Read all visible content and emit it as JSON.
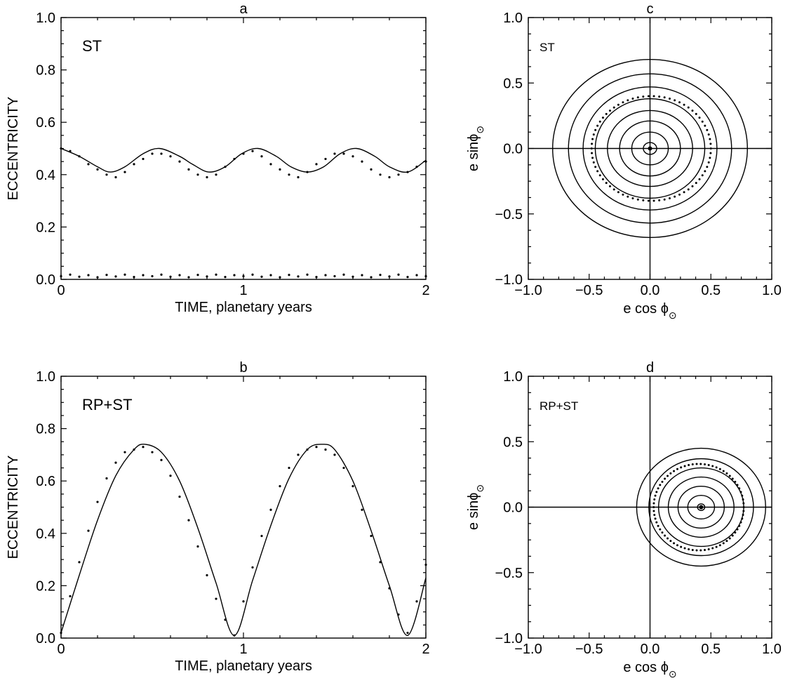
{
  "chart_data": [
    {
      "id": "a",
      "type": "line",
      "title": "a",
      "label": "ST",
      "xlabel": "TIME,  planetary years",
      "ylabel": "ECCENTRICITY",
      "xlim": [
        0,
        2
      ],
      "ylim": [
        0,
        1
      ],
      "xticks": [
        0,
        1,
        2
      ],
      "yticks": [
        0.0,
        0.2,
        0.4,
        0.6,
        0.8,
        1.0
      ],
      "x_tick_labels": [
        "0",
        "1",
        "2"
      ],
      "y_tick_labels": [
        "0.0",
        "0.2",
        "0.4",
        "0.6",
        "0.8",
        "1.0"
      ],
      "series": [
        {
          "style": "solid",
          "x": [
            0,
            0.1,
            0.2,
            0.27,
            0.35,
            0.45,
            0.54,
            0.65,
            0.72,
            0.81,
            0.9,
            0.99,
            1.08,
            1.18,
            1.26,
            1.35,
            1.44,
            1.53,
            1.62,
            1.72,
            1.8,
            1.9,
            2.0
          ],
          "y": [
            0.5,
            0.47,
            0.43,
            0.41,
            0.43,
            0.48,
            0.5,
            0.47,
            0.44,
            0.41,
            0.43,
            0.48,
            0.5,
            0.47,
            0.43,
            0.41,
            0.43,
            0.48,
            0.5,
            0.47,
            0.43,
            0.41,
            0.455
          ]
        },
        {
          "style": "dotted",
          "x": [
            0,
            0.05,
            0.1,
            0.15,
            0.2,
            0.25,
            0.3,
            0.35,
            0.4,
            0.45,
            0.5,
            0.55,
            0.6,
            0.65,
            0.7,
            0.75,
            0.8,
            0.85,
            0.9,
            0.95,
            1.0,
            1.05,
            1.1,
            1.15,
            1.2,
            1.25,
            1.3,
            1.35,
            1.4,
            1.45,
            1.5,
            1.55,
            1.6,
            1.65,
            1.7,
            1.75,
            1.8,
            1.85,
            1.9,
            1.95,
            2.0
          ],
          "y": [
            0.5,
            0.49,
            0.47,
            0.44,
            0.42,
            0.4,
            0.39,
            0.41,
            0.44,
            0.46,
            0.48,
            0.48,
            0.47,
            0.45,
            0.42,
            0.4,
            0.39,
            0.4,
            0.43,
            0.46,
            0.48,
            0.49,
            0.47,
            0.44,
            0.42,
            0.4,
            0.39,
            0.41,
            0.44,
            0.46,
            0.48,
            0.48,
            0.47,
            0.45,
            0.42,
            0.4,
            0.39,
            0.4,
            0.41,
            0.43,
            0.45
          ]
        },
        {
          "style": "dotted",
          "x": [
            0,
            0.05,
            0.1,
            0.15,
            0.2,
            0.25,
            0.3,
            0.35,
            0.4,
            0.45,
            0.5,
            0.55,
            0.6,
            0.65,
            0.7,
            0.75,
            0.8,
            0.85,
            0.9,
            0.95,
            1.0,
            1.05,
            1.1,
            1.15,
            1.2,
            1.25,
            1.3,
            1.35,
            1.4,
            1.45,
            1.5,
            1.55,
            1.6,
            1.65,
            1.7,
            1.75,
            1.8,
            1.85,
            1.9,
            1.95,
            2.0
          ],
          "y": [
            0.012,
            0.018,
            0.01,
            0.016,
            0.008,
            0.017,
            0.011,
            0.018,
            0.009,
            0.016,
            0.012,
            0.018,
            0.01,
            0.016,
            0.008,
            0.017,
            0.011,
            0.018,
            0.009,
            0.016,
            0.012,
            0.018,
            0.01,
            0.016,
            0.008,
            0.017,
            0.011,
            0.018,
            0.009,
            0.016,
            0.012,
            0.018,
            0.01,
            0.016,
            0.008,
            0.017,
            0.011,
            0.018,
            0.009,
            0.016,
            0.012
          ]
        }
      ]
    },
    {
      "id": "b",
      "type": "line",
      "title": "b",
      "label": "RP+ST",
      "xlabel": "TIME,  planetary years",
      "ylabel": "ECCENTRICITY",
      "xlim": [
        0,
        2
      ],
      "ylim": [
        0,
        1
      ],
      "xticks": [
        0,
        1,
        2
      ],
      "yticks": [
        0.0,
        0.2,
        0.4,
        0.6,
        0.8,
        1.0
      ],
      "x_tick_labels": [
        "0",
        "1",
        "2"
      ],
      "y_tick_labels": [
        "0.0",
        "0.2",
        "0.4",
        "0.6",
        "0.8",
        "1.0"
      ],
      "series": [
        {
          "style": "solid",
          "x": [
            0,
            0.1,
            0.2,
            0.3,
            0.4,
            0.46,
            0.55,
            0.65,
            0.75,
            0.85,
            0.95,
            1.05,
            1.15,
            1.25,
            1.35,
            1.43,
            1.5,
            1.6,
            1.7,
            1.8,
            1.9,
            2.0
          ],
          "y": [
            0.02,
            0.24,
            0.45,
            0.62,
            0.72,
            0.74,
            0.71,
            0.6,
            0.42,
            0.21,
            0.01,
            0.22,
            0.43,
            0.61,
            0.72,
            0.74,
            0.72,
            0.6,
            0.41,
            0.2,
            0.01,
            0.23
          ]
        },
        {
          "style": "dotted",
          "x": [
            0,
            0.05,
            0.1,
            0.15,
            0.2,
            0.25,
            0.3,
            0.35,
            0.4,
            0.45,
            0.5,
            0.55,
            0.6,
            0.65,
            0.7,
            0.75,
            0.8,
            0.85,
            0.9,
            0.95,
            1.0,
            1.05,
            1.1,
            1.15,
            1.2,
            1.25,
            1.3,
            1.35,
            1.4,
            1.45,
            1.5,
            1.55,
            1.6,
            1.65,
            1.7,
            1.75,
            1.8,
            1.85,
            1.9,
            1.95,
            2.0
          ],
          "y": [
            0.02,
            0.16,
            0.29,
            0.41,
            0.52,
            0.61,
            0.67,
            0.71,
            0.72,
            0.73,
            0.71,
            0.68,
            0.62,
            0.54,
            0.45,
            0.35,
            0.24,
            0.15,
            0.07,
            0.01,
            0.14,
            0.27,
            0.39,
            0.49,
            0.58,
            0.65,
            0.7,
            0.72,
            0.73,
            0.72,
            0.7,
            0.65,
            0.58,
            0.49,
            0.39,
            0.29,
            0.19,
            0.09,
            0.02,
            0.14,
            0.28
          ]
        }
      ]
    },
    {
      "id": "c",
      "type": "line",
      "title": "c",
      "label": "ST",
      "xlabel": "e  cos ϕ",
      "ylabel": "e  sinϕ",
      "label_subscript": "⊙",
      "xlim": [
        -1,
        1
      ],
      "ylim": [
        -1,
        1
      ],
      "xticks": [
        -1.0,
        -0.5,
        0.0,
        0.5,
        1.0
      ],
      "yticks": [
        -1.0,
        -0.5,
        0.0,
        0.5,
        1.0
      ],
      "x_tick_labels": [
        "−1.0",
        "−0.5",
        "0.0",
        "0.5",
        "1.0"
      ],
      "y_tick_labels": [
        "−1.0",
        "−0.5",
        "0.0",
        "0.5",
        "1.0"
      ],
      "center": [
        0.0,
        0.0
      ],
      "contour_radii_x": [
        0.055,
        0.15,
        0.25,
        0.35,
        0.45,
        0.55,
        0.67,
        0.8
      ],
      "contour_radii_y": [
        0.045,
        0.125,
        0.21,
        0.29,
        0.38,
        0.47,
        0.57,
        0.68
      ],
      "dotted_orbit": {
        "center": [
          0.01,
          0.0
        ],
        "rx": 0.49,
        "ry": 0.4
      }
    },
    {
      "id": "d",
      "type": "line",
      "title": "d",
      "label": "RP+ST",
      "xlabel": "e  cos ϕ",
      "ylabel": "e  sinϕ",
      "label_subscript": "⊙",
      "xlim": [
        -1,
        1
      ],
      "ylim": [
        -1,
        1
      ],
      "xticks": [
        -1.0,
        -0.5,
        0.0,
        0.5,
        1.0
      ],
      "yticks": [
        -1.0,
        -0.5,
        0.0,
        0.5,
        1.0
      ],
      "x_tick_labels": [
        "−1.0",
        "−0.5",
        "0.0",
        "0.5",
        "1.0"
      ],
      "y_tick_labels": [
        "−1.0",
        "−0.5",
        "0.0",
        "0.5",
        "1.0"
      ],
      "center": [
        0.42,
        0.0
      ],
      "contour_radii_x": [
        0.03,
        0.11,
        0.19,
        0.27,
        0.35,
        0.43,
        0.53
      ],
      "contour_radii_y": [
        0.025,
        0.09,
        0.16,
        0.23,
        0.3,
        0.37,
        0.45
      ],
      "dotted_orbit": {
        "center": [
          0.4,
          0.0
        ],
        "rx": 0.37,
        "ry": 0.33
      }
    }
  ]
}
